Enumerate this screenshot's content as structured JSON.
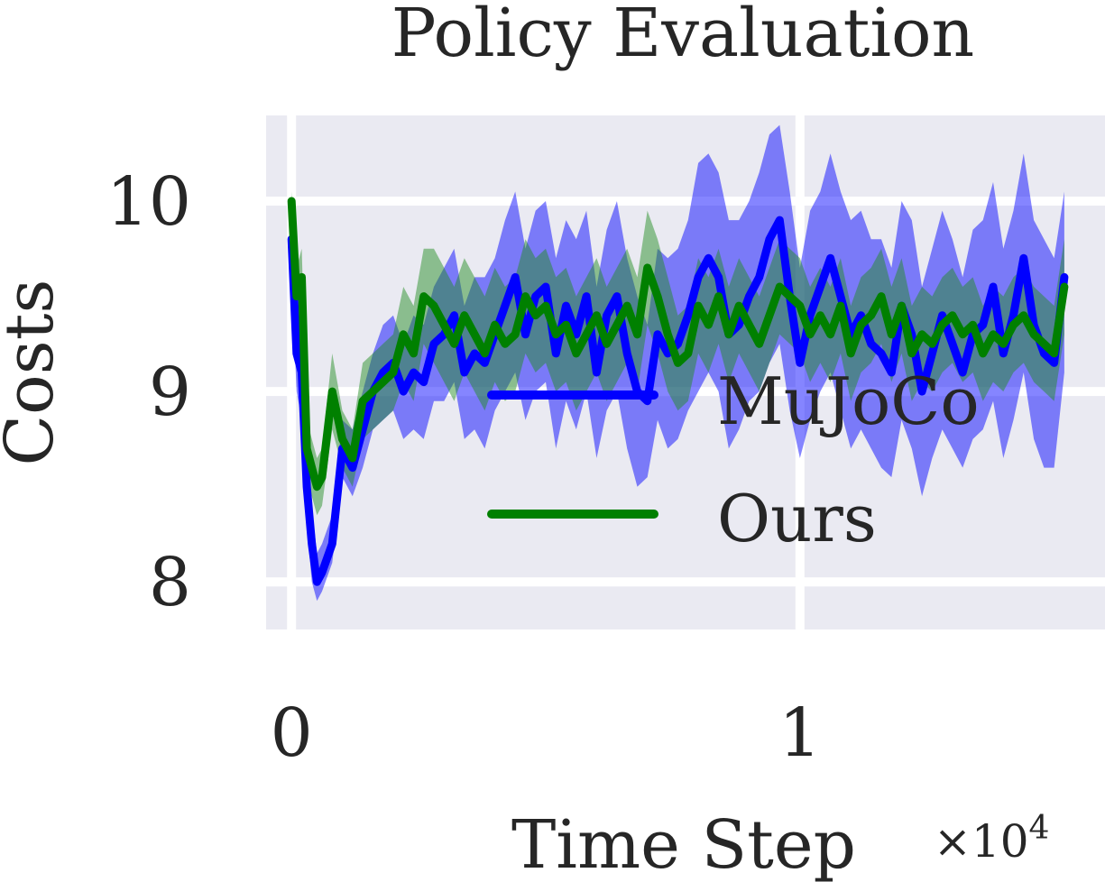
{
  "chart_data": {
    "type": "line",
    "title": "Policy Evaluation",
    "xlabel": "Time Step",
    "x_scale_label": "×10",
    "x_scale_exp": "4",
    "ylabel": "Costs",
    "x_units_multiplier": 10000,
    "xlim": [
      -0.05,
      1.6
    ],
    "ylim": [
      7.75,
      10.45
    ],
    "xticks": [
      {
        "value": 0,
        "label": "0"
      },
      {
        "value": 1,
        "label": "1"
      }
    ],
    "yticks": [
      {
        "value": 8,
        "label": "8"
      },
      {
        "value": 9,
        "label": "9"
      },
      {
        "value": 10,
        "label": "10"
      }
    ],
    "grid": true,
    "legend": "center-right",
    "series": [
      {
        "name": "MuJoCo",
        "color": "#0000ff",
        "band_color": "#0000ff",
        "x": [
          0.0,
          0.01,
          0.02,
          0.03,
          0.04,
          0.05,
          0.06,
          0.08,
          0.1,
          0.12,
          0.14,
          0.16,
          0.18,
          0.2,
          0.22,
          0.24,
          0.26,
          0.28,
          0.3,
          0.32,
          0.34,
          0.36,
          0.38,
          0.4,
          0.42,
          0.44,
          0.46,
          0.48,
          0.5,
          0.52,
          0.54,
          0.56,
          0.58,
          0.6,
          0.62,
          0.64,
          0.66,
          0.68,
          0.7,
          0.72,
          0.74,
          0.76,
          0.78,
          0.8,
          0.82,
          0.84,
          0.86,
          0.88,
          0.9,
          0.92,
          0.94,
          0.96,
          0.98,
          1.0,
          1.02,
          1.04,
          1.06,
          1.08,
          1.1,
          1.12,
          1.14,
          1.16,
          1.18,
          1.2,
          1.22,
          1.24,
          1.26,
          1.28,
          1.3,
          1.32,
          1.34,
          1.36,
          1.38,
          1.4,
          1.42,
          1.44,
          1.46,
          1.48,
          1.5,
          1.52
        ],
        "values": [
          9.8,
          9.2,
          9.1,
          8.5,
          8.2,
          8.0,
          8.05,
          8.2,
          8.7,
          8.6,
          8.8,
          9.0,
          9.1,
          9.15,
          9.0,
          9.1,
          9.05,
          9.25,
          9.3,
          9.4,
          9.1,
          9.2,
          9.15,
          9.3,
          9.45,
          9.6,
          9.3,
          9.5,
          9.55,
          9.2,
          9.45,
          9.3,
          9.5,
          9.1,
          9.4,
          9.5,
          9.2,
          9.0,
          8.95,
          9.3,
          9.2,
          9.25,
          9.4,
          9.6,
          9.7,
          9.6,
          9.3,
          9.35,
          9.5,
          9.6,
          9.8,
          9.9,
          9.5,
          9.15,
          9.4,
          9.55,
          9.7,
          9.5,
          9.3,
          9.4,
          9.25,
          9.2,
          9.1,
          9.45,
          9.3,
          9.0,
          9.2,
          9.4,
          9.25,
          9.1,
          9.3,
          9.35,
          9.55,
          9.2,
          9.4,
          9.7,
          9.35,
          9.2,
          9.15,
          9.6
        ],
        "lower": [
          9.6,
          9.0,
          8.85,
          8.3,
          8.0,
          7.9,
          7.95,
          8.1,
          8.55,
          8.45,
          8.6,
          8.8,
          8.85,
          8.9,
          8.75,
          8.8,
          8.75,
          8.95,
          8.95,
          9.05,
          8.75,
          8.8,
          8.7,
          8.9,
          9.0,
          9.1,
          8.85,
          9.0,
          9.05,
          8.7,
          8.95,
          8.8,
          9.0,
          8.65,
          8.9,
          9.0,
          8.7,
          8.5,
          8.55,
          8.85,
          8.7,
          8.75,
          8.9,
          9.0,
          9.1,
          9.0,
          8.7,
          8.8,
          8.95,
          9.0,
          9.15,
          9.25,
          8.9,
          8.65,
          8.85,
          9.0,
          9.1,
          8.9,
          8.7,
          8.8,
          8.7,
          8.6,
          8.55,
          8.85,
          8.7,
          8.45,
          8.65,
          8.8,
          8.7,
          8.6,
          8.75,
          8.8,
          8.95,
          8.65,
          8.85,
          9.1,
          8.75,
          8.6,
          8.6,
          9.1
        ],
        "upper": [
          10.0,
          9.4,
          9.3,
          8.7,
          8.4,
          8.15,
          8.2,
          8.35,
          8.85,
          8.8,
          9.0,
          9.2,
          9.35,
          9.4,
          9.25,
          9.4,
          9.35,
          9.55,
          9.65,
          9.75,
          9.45,
          9.6,
          9.6,
          9.7,
          9.9,
          10.05,
          9.75,
          9.95,
          10.0,
          9.7,
          9.9,
          9.8,
          9.95,
          9.55,
          9.85,
          10.0,
          9.7,
          9.5,
          9.35,
          9.75,
          9.7,
          9.75,
          9.9,
          10.2,
          10.25,
          10.15,
          9.9,
          9.9,
          10.0,
          10.15,
          10.35,
          10.4,
          10.05,
          9.65,
          9.95,
          10.05,
          10.25,
          10.05,
          9.9,
          9.95,
          9.8,
          9.8,
          9.65,
          10.0,
          9.9,
          9.55,
          9.75,
          9.95,
          9.8,
          9.6,
          9.85,
          9.9,
          10.1,
          9.75,
          9.95,
          10.25,
          9.9,
          9.8,
          9.7,
          10.05
        ]
      },
      {
        "name": "Ours",
        "color": "#008000",
        "band_color": "#228b22",
        "x": [
          0.0,
          0.01,
          0.02,
          0.03,
          0.04,
          0.05,
          0.06,
          0.08,
          0.1,
          0.12,
          0.14,
          0.16,
          0.18,
          0.2,
          0.22,
          0.24,
          0.26,
          0.28,
          0.3,
          0.32,
          0.34,
          0.36,
          0.38,
          0.4,
          0.42,
          0.44,
          0.46,
          0.48,
          0.5,
          0.52,
          0.54,
          0.56,
          0.58,
          0.6,
          0.62,
          0.64,
          0.66,
          0.68,
          0.7,
          0.72,
          0.74,
          0.76,
          0.78,
          0.8,
          0.82,
          0.84,
          0.86,
          0.88,
          0.9,
          0.92,
          0.94,
          0.96,
          0.98,
          1.0,
          1.02,
          1.04,
          1.06,
          1.08,
          1.1,
          1.12,
          1.14,
          1.16,
          1.18,
          1.2,
          1.22,
          1.24,
          1.26,
          1.28,
          1.3,
          1.32,
          1.34,
          1.36,
          1.38,
          1.4,
          1.42,
          1.44,
          1.46,
          1.48,
          1.5,
          1.52
        ],
        "values": [
          10.0,
          9.5,
          9.6,
          8.7,
          8.6,
          8.5,
          8.55,
          9.0,
          8.75,
          8.65,
          8.95,
          9.0,
          9.05,
          9.1,
          9.3,
          9.2,
          9.5,
          9.45,
          9.35,
          9.25,
          9.4,
          9.3,
          9.2,
          9.35,
          9.25,
          9.3,
          9.5,
          9.4,
          9.45,
          9.3,
          9.35,
          9.2,
          9.3,
          9.4,
          9.25,
          9.35,
          9.45,
          9.3,
          9.65,
          9.5,
          9.3,
          9.15,
          9.2,
          9.45,
          9.35,
          9.5,
          9.3,
          9.45,
          9.35,
          9.25,
          9.4,
          9.55,
          9.5,
          9.45,
          9.3,
          9.4,
          9.3,
          9.45,
          9.2,
          9.35,
          9.4,
          9.5,
          9.3,
          9.45,
          9.2,
          9.3,
          9.25,
          9.35,
          9.4,
          9.3,
          9.35,
          9.2,
          9.3,
          9.25,
          9.35,
          9.4,
          9.3,
          9.25,
          9.2,
          9.55
        ],
        "lower": [
          9.95,
          9.35,
          9.45,
          8.55,
          8.45,
          8.35,
          8.4,
          8.8,
          8.6,
          8.5,
          8.75,
          8.8,
          8.85,
          8.9,
          9.05,
          8.95,
          9.25,
          9.15,
          9.05,
          8.95,
          9.1,
          9.0,
          8.9,
          9.05,
          8.95,
          9.0,
          9.2,
          9.1,
          9.15,
          9.0,
          9.05,
          8.9,
          9.0,
          9.1,
          8.95,
          9.05,
          9.15,
          9.0,
          9.35,
          9.2,
          9.0,
          8.9,
          8.95,
          9.2,
          9.1,
          9.25,
          9.05,
          9.2,
          9.1,
          9.0,
          9.15,
          9.3,
          9.25,
          9.2,
          9.05,
          9.15,
          9.05,
          9.2,
          8.95,
          9.1,
          9.15,
          9.25,
          9.05,
          9.2,
          8.95,
          9.05,
          9.0,
          9.1,
          9.15,
          9.05,
          9.1,
          8.95,
          9.05,
          9.0,
          9.1,
          9.15,
          9.05,
          9.0,
          8.95,
          9.3
        ],
        "upper": [
          10.05,
          9.65,
          9.75,
          8.85,
          8.75,
          8.65,
          8.7,
          9.2,
          8.9,
          8.8,
          9.15,
          9.2,
          9.25,
          9.3,
          9.55,
          9.45,
          9.75,
          9.75,
          9.65,
          9.55,
          9.7,
          9.6,
          9.5,
          9.65,
          9.55,
          9.6,
          9.8,
          9.7,
          9.75,
          9.6,
          9.65,
          9.5,
          9.6,
          9.7,
          9.55,
          9.65,
          9.75,
          9.6,
          9.95,
          9.8,
          9.6,
          9.4,
          9.45,
          9.7,
          9.6,
          9.75,
          9.55,
          9.7,
          9.6,
          9.5,
          9.65,
          9.8,
          9.75,
          9.7,
          9.55,
          9.65,
          9.55,
          9.7,
          9.45,
          9.6,
          9.65,
          9.75,
          9.55,
          9.7,
          9.45,
          9.55,
          9.5,
          9.6,
          9.65,
          9.55,
          9.6,
          9.45,
          9.55,
          9.5,
          9.6,
          9.65,
          9.55,
          9.5,
          9.45,
          9.8
        ]
      }
    ],
    "colors": {
      "plot_background": "#eaeaf2",
      "grid": "#ffffff",
      "text": "#262626"
    }
  }
}
